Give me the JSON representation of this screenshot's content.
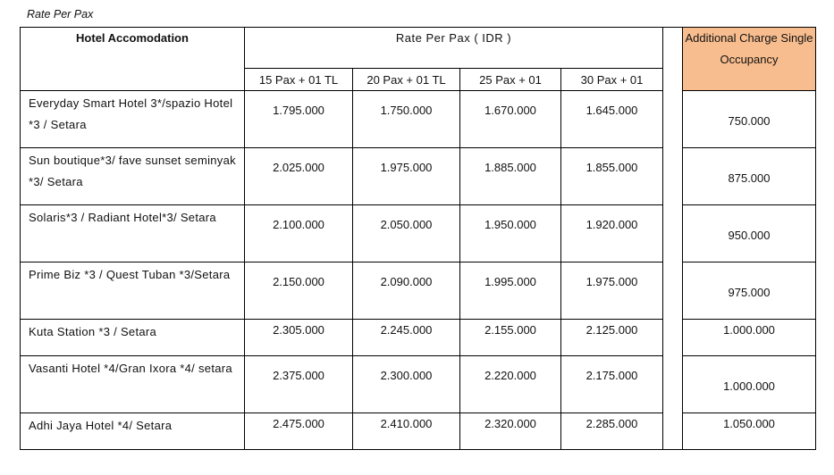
{
  "caption": "Rate Per Pax",
  "header": {
    "hotel": "Hotel Accomodation",
    "rate_group": "Rate Per Pax ( IDR )",
    "columns": [
      "15 Pax + 01 TL",
      "20 Pax + 01 TL",
      "25 Pax + 01",
      "30 Pax + 01"
    ],
    "additional": "Additional Charge Single Occupancy"
  },
  "colors": {
    "additional_header_bg": "#f8bd8e"
  },
  "rows": [
    {
      "hotel": "Everyday Smart Hotel 3*/spazio Hotel *3 / Setara",
      "rates": [
        "1.795.000",
        "1.750.000",
        "1.670.000",
        "1.645.000"
      ],
      "additional": "750.000"
    },
    {
      "hotel": "Sun boutique*3/ fave sunset seminyak *3/ Setara",
      "rates": [
        "2.025.000",
        "1.975.000",
        "1.885.000",
        "1.855.000"
      ],
      "additional": "875.000"
    },
    {
      "hotel": "Solaris*3 / Radiant Hotel*3/ Setara",
      "rates": [
        "2.100.000",
        "2.050.000",
        "1.950.000",
        "1.920.000"
      ],
      "additional": "950.000"
    },
    {
      "hotel": "Prime Biz *3 / Quest Tuban *3/Setara",
      "rates": [
        "2.150.000",
        "2.090.000",
        "1.995.000",
        "1.975.000"
      ],
      "additional": "975.000"
    },
    {
      "hotel": "Kuta Station *3 / Setara",
      "rates": [
        "2.305.000",
        "2.245.000",
        "2.155.000",
        "2.125.000"
      ],
      "additional": "1.000.000"
    },
    {
      "hotel": "Vasanti Hotel *4/Gran Ixora *4/ setara",
      "rates": [
        "2.375.000",
        "2.300.000",
        "2.220.000",
        "2.175.000"
      ],
      "additional": "1.000.000"
    },
    {
      "hotel": "Adhi Jaya Hotel *4/ Setara",
      "rates": [
        "2.475.000",
        "2.410.000",
        "2.320.000",
        "2.285.000"
      ],
      "additional": "1.050.000"
    }
  ]
}
